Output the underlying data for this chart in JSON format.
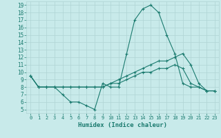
{
  "title": "",
  "xlabel": "Humidex (Indice chaleur)",
  "ylabel": "",
  "bg_color": "#c8eaea",
  "line_color": "#1a7a6e",
  "grid_color": "#afd4d4",
  "xlim": [
    -0.5,
    23.5
  ],
  "ylim": [
    4.5,
    19.5
  ],
  "xticks": [
    0,
    1,
    2,
    3,
    4,
    5,
    6,
    7,
    8,
    9,
    10,
    11,
    12,
    13,
    14,
    15,
    16,
    17,
    18,
    19,
    20,
    21,
    22,
    23
  ],
  "yticks": [
    5,
    6,
    7,
    8,
    9,
    10,
    11,
    12,
    13,
    14,
    15,
    16,
    17,
    18,
    19
  ],
  "curve1_x": [
    0,
    1,
    2,
    3,
    4,
    5,
    6,
    7,
    8,
    9,
    10,
    11,
    12,
    13,
    14,
    15,
    16,
    17,
    18,
    19,
    20,
    21,
    22,
    23
  ],
  "curve1_y": [
    9.5,
    8.0,
    8.0,
    8.0,
    7.0,
    6.0,
    6.0,
    5.5,
    5.0,
    8.5,
    8.0,
    8.0,
    12.5,
    17.0,
    18.5,
    19.0,
    18.0,
    15.0,
    12.5,
    8.5,
    8.0,
    8.0,
    7.5,
    7.5
  ],
  "curve2_x": [
    0,
    1,
    2,
    3,
    4,
    5,
    6,
    7,
    8,
    9,
    10,
    11,
    12,
    13,
    14,
    15,
    16,
    17,
    18,
    19,
    20,
    21,
    22,
    23
  ],
  "curve2_y": [
    9.5,
    8.0,
    8.0,
    8.0,
    8.0,
    8.0,
    8.0,
    8.0,
    8.0,
    8.0,
    8.5,
    9.0,
    9.5,
    10.0,
    10.5,
    11.0,
    11.5,
    11.5,
    12.0,
    12.5,
    11.0,
    8.5,
    7.5,
    7.5
  ],
  "curve3_x": [
    0,
    1,
    2,
    3,
    4,
    5,
    6,
    7,
    8,
    9,
    10,
    11,
    12,
    13,
    14,
    15,
    16,
    17,
    18,
    19,
    20,
    21,
    22,
    23
  ],
  "curve3_y": [
    9.5,
    8.0,
    8.0,
    8.0,
    8.0,
    8.0,
    8.0,
    8.0,
    8.0,
    8.0,
    8.5,
    8.5,
    9.0,
    9.5,
    10.0,
    10.0,
    10.5,
    10.5,
    11.0,
    10.5,
    8.5,
    8.0,
    7.5,
    7.5
  ]
}
